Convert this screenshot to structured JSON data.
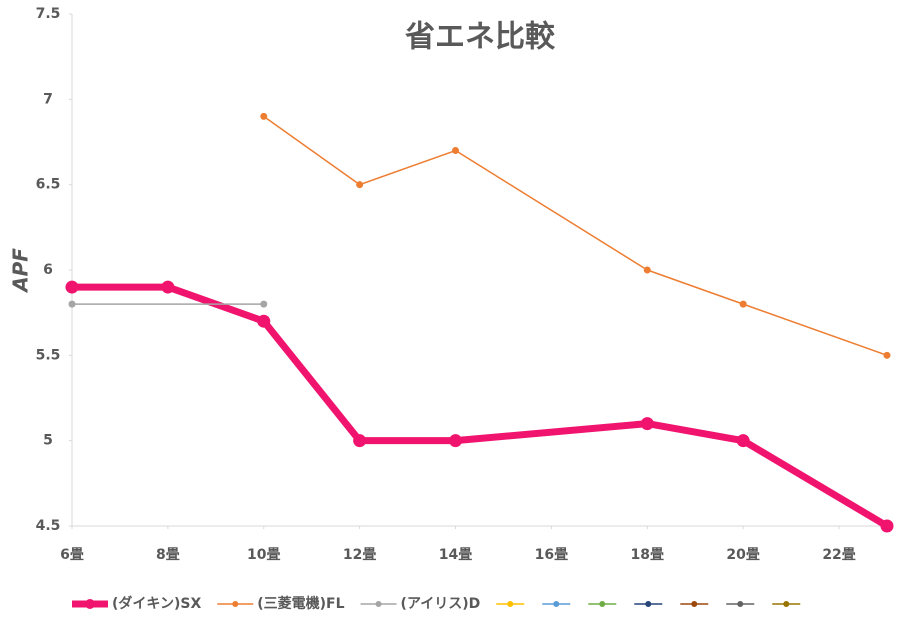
{
  "chart_data": {
    "type": "line",
    "title": "省エネ比較",
    "y_label": "APF",
    "xlim": [
      6,
      23
    ],
    "ylim": [
      4.5,
      7.5
    ],
    "xticks": [
      {
        "value": 6,
        "label": "6畳"
      },
      {
        "value": 8,
        "label": "8畳"
      },
      {
        "value": 10,
        "label": "10畳"
      },
      {
        "value": 12,
        "label": "12畳"
      },
      {
        "value": 14,
        "label": "14畳"
      },
      {
        "value": 16,
        "label": "16畳"
      },
      {
        "value": 18,
        "label": "18畳"
      },
      {
        "value": 20,
        "label": "20畳"
      },
      {
        "value": 22,
        "label": "22畳"
      }
    ],
    "yticks": [
      4.5,
      5,
      5.5,
      6,
      6.5,
      7,
      7.5
    ],
    "series": [
      {
        "name": "(ダイキン)SX",
        "color": "#f0146e",
        "width": 7,
        "x": [
          6,
          8,
          10,
          12,
          14,
          18,
          20,
          23
        ],
        "values": [
          5.9,
          5.9,
          5.7,
          5.0,
          5.0,
          5.1,
          5.0,
          4.5
        ]
      },
      {
        "name": "(三菱電機)FL",
        "color": "#ed7d31",
        "width": 1.5,
        "x": [
          10,
          12,
          14,
          18,
          20,
          23
        ],
        "values": [
          6.9,
          6.5,
          6.7,
          6.0,
          5.8,
          5.5
        ]
      },
      {
        "name": "(アイリス)D",
        "color": "#a5a5a5",
        "width": 1.5,
        "x": [
          6,
          10
        ],
        "values": [
          5.8,
          5.8
        ]
      }
    ],
    "extra_legend_colors": [
      "#ffc000",
      "#5b9bd5",
      "#70ad47",
      "#264478",
      "#9e480e",
      "#636363",
      "#997300"
    ]
  }
}
